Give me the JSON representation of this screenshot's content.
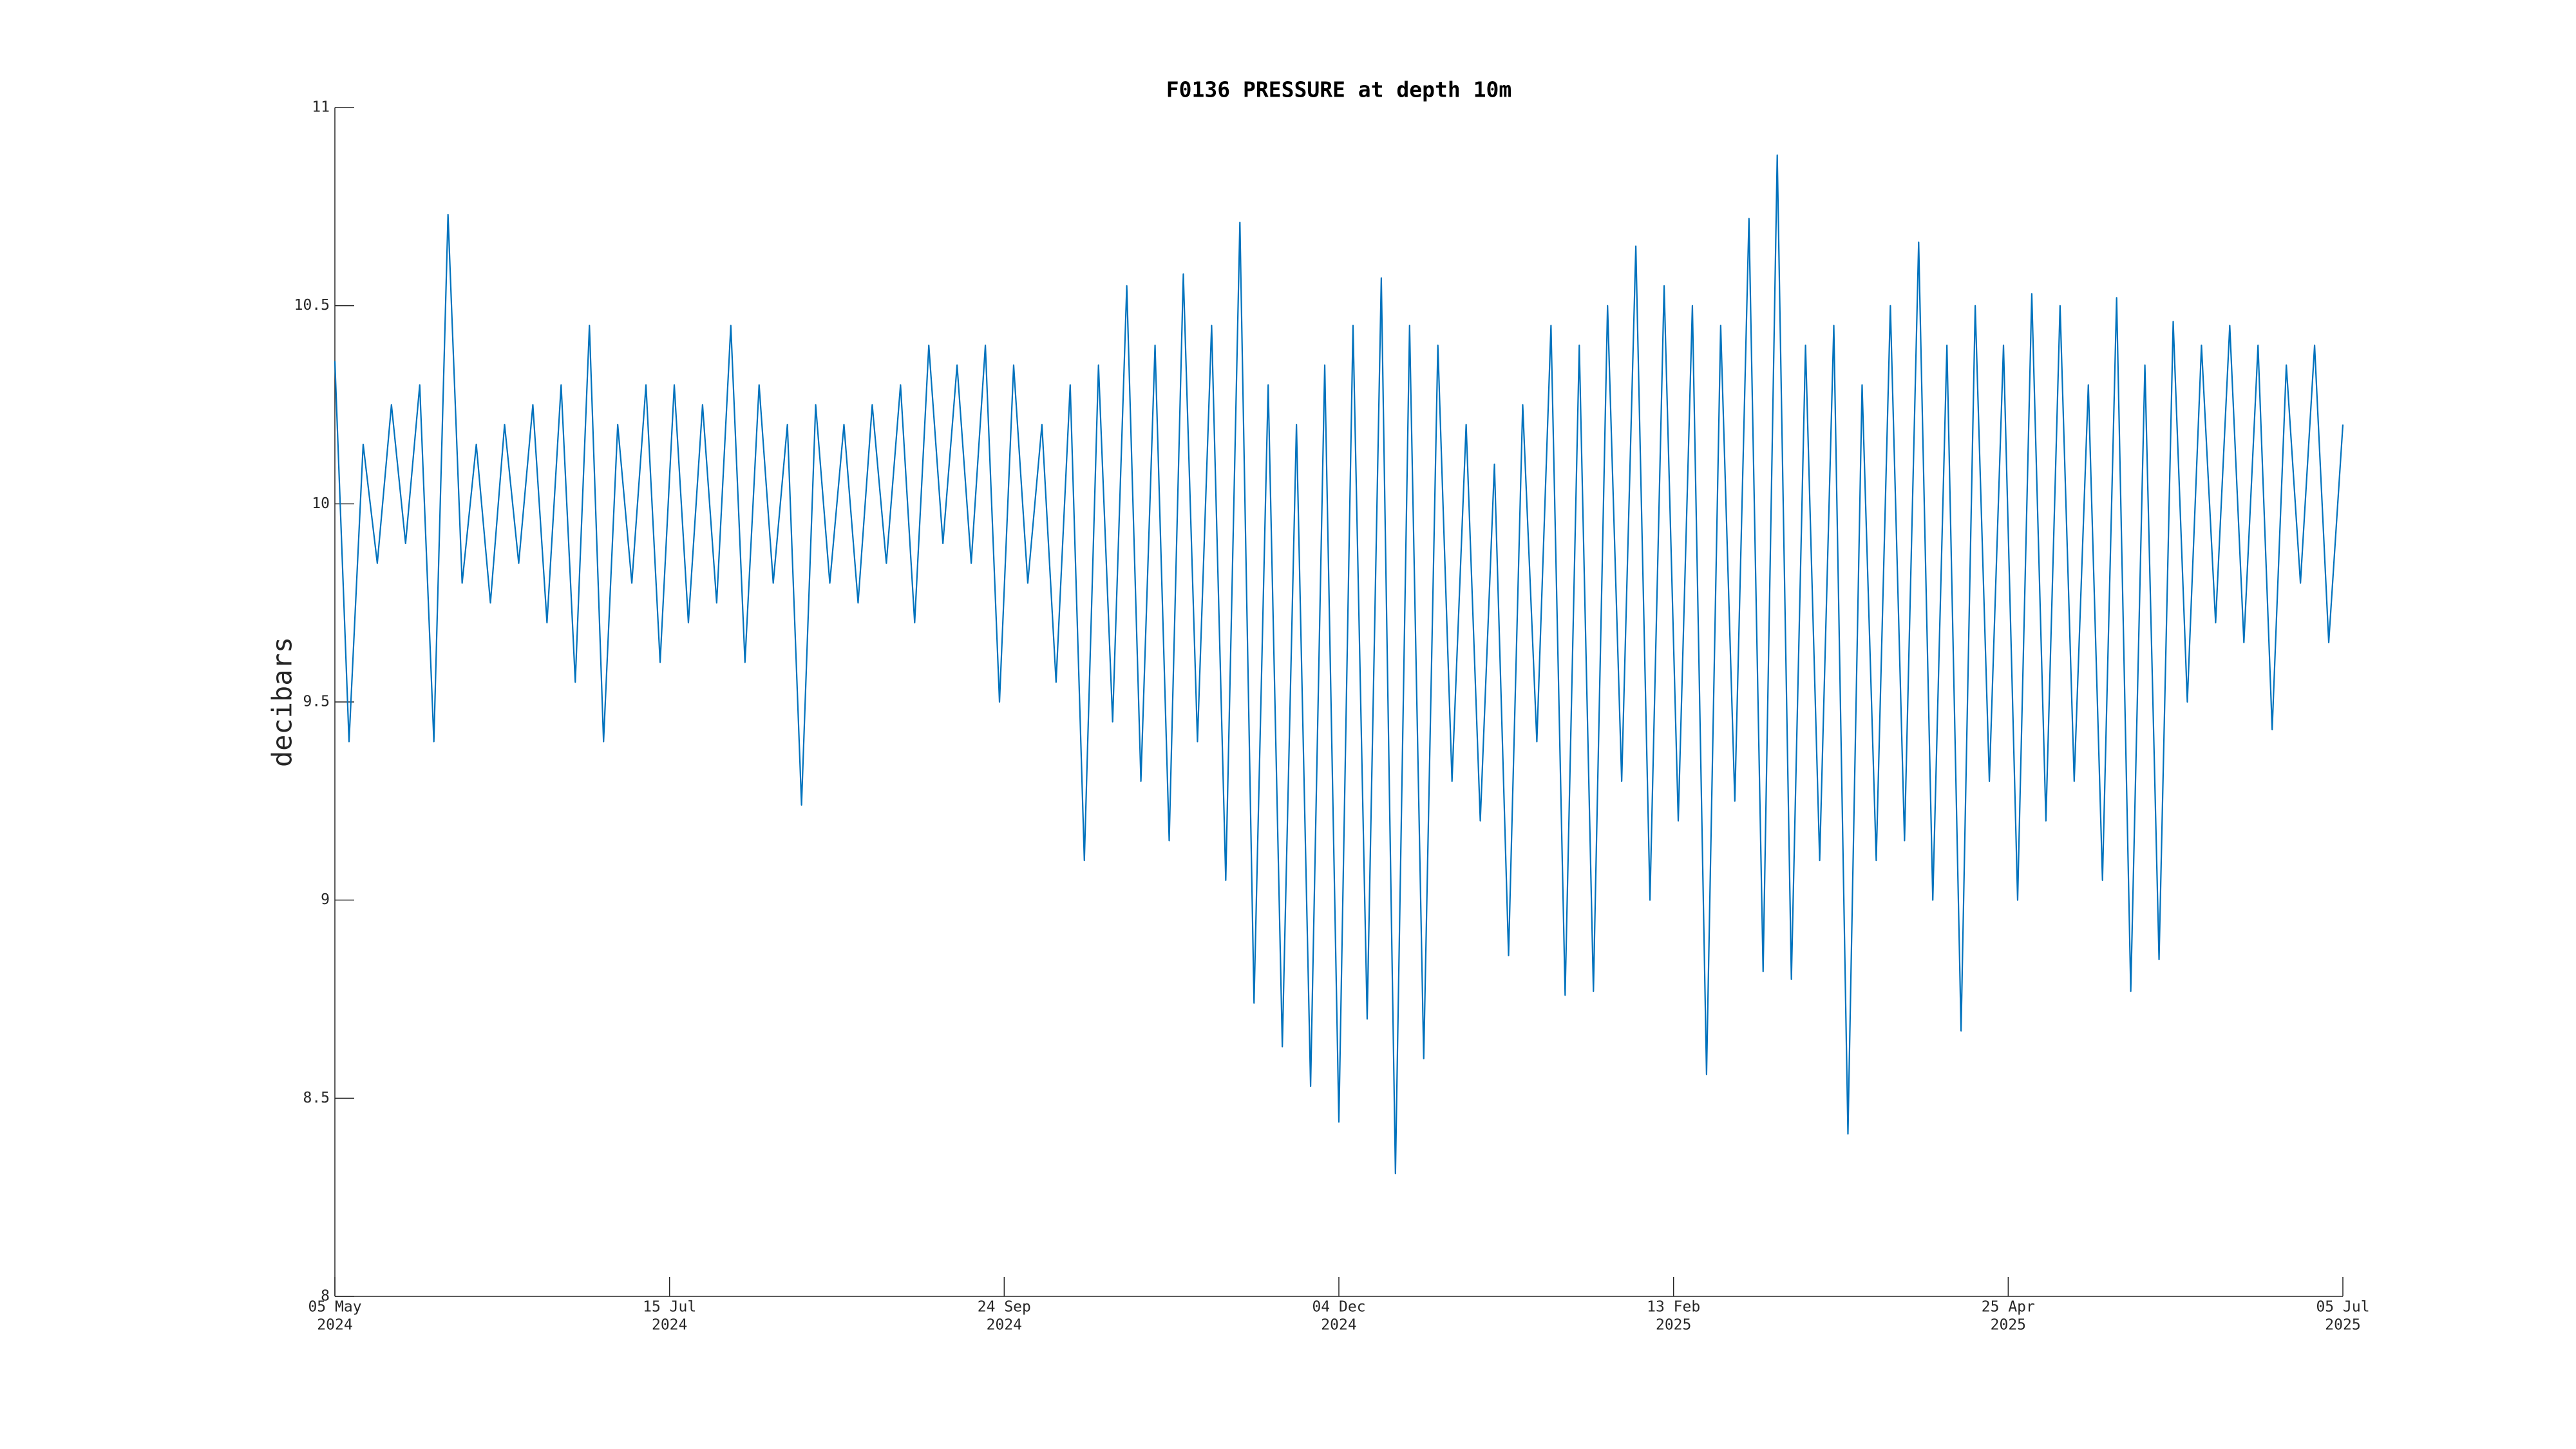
{
  "chart_data": {
    "type": "line",
    "title": "F0136 PRESSURE at depth 10m",
    "y_label": "decibars",
    "xlim": [
      "2024-05-05",
      "2025-07-05"
    ],
    "ylim": [
      8,
      11
    ],
    "yticks": [
      8,
      8.5,
      9,
      9.5,
      10,
      10.5,
      11
    ],
    "xticks": [
      {
        "value": "2024-05-05",
        "label": [
          "05 May",
          "2024"
        ]
      },
      {
        "value": "2024-07-15",
        "label": [
          "15 Jul",
          "2024"
        ]
      },
      {
        "value": "2024-09-24",
        "label": [
          "24 Sep",
          "2024"
        ]
      },
      {
        "value": "2024-12-04",
        "label": [
          "04 Dec",
          "2024"
        ]
      },
      {
        "value": "2025-02-13",
        "label": [
          "13 Feb",
          "2025"
        ]
      },
      {
        "value": "2025-04-25",
        "label": [
          "25 Apr",
          "2025"
        ]
      },
      {
        "value": "2025-07-05",
        "label": [
          "05 Jul",
          "2025"
        ]
      }
    ],
    "grid": false,
    "x": [
      "2024-05-05",
      "2024-05-08",
      "2024-05-11",
      "2024-05-14",
      "2024-05-17",
      "2024-05-20",
      "2024-05-23",
      "2024-05-26",
      "2024-05-29",
      "2024-06-01",
      "2024-06-04",
      "2024-06-07",
      "2024-06-10",
      "2024-06-13",
      "2024-06-16",
      "2024-06-19",
      "2024-06-22",
      "2024-06-25",
      "2024-06-28",
      "2024-07-01",
      "2024-07-04",
      "2024-07-07",
      "2024-07-10",
      "2024-07-13",
      "2024-07-16",
      "2024-07-19",
      "2024-07-22",
      "2024-07-25",
      "2024-07-28",
      "2024-07-31",
      "2024-08-03",
      "2024-08-06",
      "2024-08-09",
      "2024-08-12",
      "2024-08-15",
      "2024-08-18",
      "2024-08-21",
      "2024-08-24",
      "2024-08-27",
      "2024-08-30",
      "2024-09-02",
      "2024-09-05",
      "2024-09-08",
      "2024-09-11",
      "2024-09-14",
      "2024-09-17",
      "2024-09-20",
      "2024-09-23",
      "2024-09-26",
      "2024-09-29",
      "2024-10-02",
      "2024-10-05",
      "2024-10-08",
      "2024-10-11",
      "2024-10-14",
      "2024-10-17",
      "2024-10-20",
      "2024-10-23",
      "2024-10-26",
      "2024-10-29",
      "2024-11-01",
      "2024-11-04",
      "2024-11-07",
      "2024-11-10",
      "2024-11-13",
      "2024-11-16",
      "2024-11-19",
      "2024-11-22",
      "2024-11-25",
      "2024-11-28",
      "2024-12-01",
      "2024-12-04",
      "2024-12-07",
      "2024-12-10",
      "2024-12-13",
      "2024-12-16",
      "2024-12-19",
      "2024-12-22",
      "2024-12-25",
      "2024-12-28",
      "2024-12-31",
      "2025-01-03",
      "2025-01-06",
      "2025-01-09",
      "2025-01-12",
      "2025-01-15",
      "2025-01-18",
      "2025-01-21",
      "2025-01-24",
      "2025-01-27",
      "2025-01-30",
      "2025-02-02",
      "2025-02-05",
      "2025-02-08",
      "2025-02-11",
      "2025-02-14",
      "2025-02-17",
      "2025-02-20",
      "2025-02-23",
      "2025-02-26",
      "2025-03-01",
      "2025-03-04",
      "2025-03-07",
      "2025-03-10",
      "2025-03-13",
      "2025-03-16",
      "2025-03-19",
      "2025-03-22",
      "2025-03-25",
      "2025-03-28",
      "2025-03-31",
      "2025-04-03",
      "2025-04-06",
      "2025-04-09",
      "2025-04-12",
      "2025-04-15",
      "2025-04-18",
      "2025-04-21",
      "2025-04-24",
      "2025-04-27",
      "2025-04-30",
      "2025-05-03",
      "2025-05-06",
      "2025-05-09",
      "2025-05-12",
      "2025-05-15",
      "2025-05-18",
      "2025-05-21",
      "2025-05-24",
      "2025-05-27",
      "2025-05-30",
      "2025-06-02",
      "2025-06-05",
      "2025-06-08",
      "2025-06-11",
      "2025-06-14",
      "2025-06-17",
      "2025-06-20",
      "2025-06-23",
      "2025-06-26",
      "2025-06-29",
      "2025-07-02",
      "2025-07-05"
    ],
    "series": [
      {
        "color": "#0072bd",
        "values": [
          10.36,
          9.4,
          10.15,
          9.85,
          10.25,
          9.9,
          10.3,
          9.4,
          10.73,
          9.8,
          10.15,
          9.75,
          10.2,
          9.85,
          10.25,
          9.7,
          10.3,
          9.55,
          10.45,
          9.4,
          10.2,
          9.8,
          10.3,
          9.6,
          10.3,
          9.7,
          10.25,
          9.75,
          10.45,
          9.6,
          10.3,
          9.8,
          10.2,
          9.24,
          10.25,
          9.8,
          10.2,
          9.75,
          10.25,
          9.85,
          10.3,
          9.7,
          10.4,
          9.9,
          10.35,
          9.85,
          10.4,
          9.5,
          10.35,
          9.8,
          10.2,
          9.55,
          10.3,
          9.1,
          10.35,
          9.45,
          10.55,
          9.3,
          10.4,
          9.15,
          10.58,
          9.4,
          10.45,
          9.05,
          10.71,
          8.74,
          10.3,
          8.63,
          10.2,
          8.53,
          10.35,
          8.44,
          10.45,
          8.7,
          10.57,
          8.31,
          10.45,
          8.6,
          10.4,
          9.3,
          10.2,
          9.2,
          10.1,
          8.86,
          10.25,
          9.4,
          10.45,
          8.76,
          10.4,
          8.77,
          10.5,
          9.3,
          10.65,
          9.0,
          10.55,
          9.2,
          10.5,
          8.56,
          10.45,
          9.25,
          10.72,
          8.82,
          10.88,
          8.8,
          10.4,
          9.1,
          10.45,
          8.41,
          10.3,
          9.1,
          10.5,
          9.15,
          10.66,
          9.0,
          10.4,
          8.67,
          10.5,
          9.3,
          10.4,
          9.0,
          10.53,
          9.2,
          10.5,
          9.3,
          10.3,
          9.05,
          10.52,
          8.77,
          10.35,
          8.85,
          10.46,
          9.5,
          10.4,
          9.7,
          10.45,
          9.65,
          10.4,
          9.43,
          10.35,
          9.8,
          10.4,
          9.65,
          10.2
        ]
      }
    ]
  }
}
